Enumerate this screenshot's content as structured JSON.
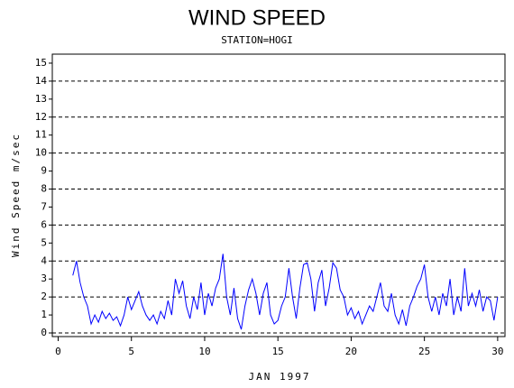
{
  "chart_data": {
    "type": "line",
    "title": "WIND SPEED",
    "subtitle": "STATION=HOGI",
    "x_label": "JAN 1997",
    "y_label": "Wind Speed m/sec",
    "xlim": [
      -0.4,
      30.5
    ],
    "xticks": [
      0,
      5,
      10,
      15,
      20,
      25,
      30
    ],
    "ylim": [
      -0.2,
      15.5
    ],
    "yticks": [
      0,
      1,
      2,
      3,
      4,
      5,
      6,
      7,
      8,
      9,
      10,
      11,
      12,
      13,
      14,
      15
    ],
    "gridlines": [
      0,
      2,
      4,
      6,
      8,
      10,
      12,
      14
    ],
    "series": [
      {
        "color": "#0000ff",
        "x": [
          1.0,
          1.25,
          1.5,
          1.75,
          2.0,
          2.25,
          2.5,
          2.75,
          3.0,
          3.25,
          3.5,
          3.75,
          4.0,
          4.25,
          4.5,
          4.75,
          5.0,
          5.25,
          5.5,
          5.75,
          6.0,
          6.25,
          6.5,
          6.75,
          7.0,
          7.25,
          7.5,
          7.75,
          8.0,
          8.25,
          8.5,
          8.75,
          9.0,
          9.25,
          9.5,
          9.75,
          10.0,
          10.25,
          10.5,
          10.75,
          11.0,
          11.25,
          11.5,
          11.75,
          12.0,
          12.25,
          12.5,
          12.75,
          13.0,
          13.25,
          13.5,
          13.75,
          14.0,
          14.25,
          14.5,
          14.75,
          15.0,
          15.25,
          15.5,
          15.75,
          16.0,
          16.25,
          16.5,
          16.75,
          17.0,
          17.25,
          17.5,
          17.75,
          18.0,
          18.25,
          18.5,
          18.75,
          19.0,
          19.25,
          19.5,
          19.75,
          20.0,
          20.25,
          20.5,
          20.75,
          21.0,
          21.25,
          21.5,
          21.75,
          22.0,
          22.25,
          22.5,
          22.75,
          23.0,
          23.25,
          23.5,
          23.75,
          24.0,
          24.25,
          24.5,
          24.75,
          25.0,
          25.25,
          25.5,
          25.75,
          26.0,
          26.25,
          26.5,
          26.75,
          27.0,
          27.25,
          27.5,
          27.75,
          28.0,
          28.25,
          28.5,
          28.75,
          29.0,
          29.25,
          29.5,
          29.75,
          30.0
        ],
        "values": [
          3.2,
          4.0,
          2.8,
          2.0,
          1.5,
          0.5,
          1.0,
          0.6,
          1.2,
          0.8,
          1.1,
          0.7,
          0.9,
          0.4,
          1.0,
          2.0,
          1.3,
          1.8,
          2.3,
          1.5,
          1.0,
          0.7,
          1.0,
          0.5,
          1.2,
          0.8,
          1.8,
          1.0,
          3.0,
          2.2,
          2.9,
          1.5,
          0.8,
          2.0,
          1.3,
          2.8,
          1.0,
          2.2,
          1.5,
          2.5,
          3.0,
          4.4,
          2.0,
          1.0,
          2.5,
          0.8,
          0.2,
          1.5,
          2.4,
          3.0,
          2.2,
          1.0,
          2.2,
          2.8,
          1.0,
          0.5,
          0.7,
          1.5,
          2.0,
          3.6,
          2.0,
          0.8,
          2.5,
          3.8,
          3.9,
          3.0,
          1.2,
          2.8,
          3.5,
          1.5,
          2.5,
          3.9,
          3.6,
          2.4,
          2.0,
          1.0,
          1.4,
          0.8,
          1.2,
          0.5,
          1.0,
          1.5,
          1.2,
          2.0,
          2.8,
          1.5,
          1.2,
          2.2,
          1.0,
          0.5,
          1.3,
          0.4,
          1.5,
          2.0,
          2.6,
          3.0,
          3.8,
          2.0,
          1.2,
          2.0,
          1.0,
          2.2,
          1.5,
          3.0,
          1.0,
          2.0,
          1.2,
          3.6,
          1.5,
          2.2,
          1.5,
          2.4,
          1.2,
          2.0,
          1.8,
          0.7,
          2.0
        ]
      }
    ]
  }
}
